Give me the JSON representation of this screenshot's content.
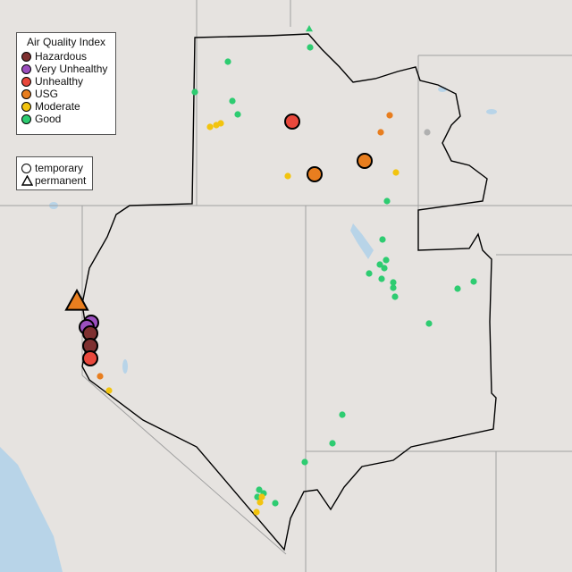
{
  "legend_aqi": {
    "title": "Air Quality Index",
    "items": [
      {
        "label": "Hazardous",
        "color": "#7e3030"
      },
      {
        "label": "Very Unhealthy",
        "color": "#9b4fbe"
      },
      {
        "label": "Unhealthy",
        "color": "#e8483c"
      },
      {
        "label": "USG",
        "color": "#e87e1f"
      },
      {
        "label": "Moderate",
        "color": "#f2c40f"
      },
      {
        "label": "Good",
        "color": "#2ecc71"
      }
    ]
  },
  "legend_type": {
    "items": [
      {
        "label": "temporary",
        "shape": "circle"
      },
      {
        "label": "permanent",
        "shape": "triangle"
      }
    ]
  },
  "colors": {
    "no_data": "#b0b0b0",
    "land": "#e6e3e0",
    "water": "#b8d4e8",
    "boundary": "#000000",
    "state_line": "#9a9a9a"
  },
  "monitors": [
    {
      "aqi": "Good",
      "type": "permanent",
      "size": "small"
    },
    {
      "aqi": "Good",
      "type": "temporary",
      "size": "small"
    },
    {
      "aqi": "Good",
      "type": "temporary",
      "size": "small"
    },
    {
      "aqi": "Good",
      "type": "temporary",
      "size": "small"
    },
    {
      "aqi": "Good",
      "type": "temporary",
      "size": "small"
    },
    {
      "aqi": "Good",
      "type": "temporary",
      "size": "small"
    },
    {
      "aqi": "Good",
      "type": "temporary",
      "size": "small"
    },
    {
      "aqi": "Good",
      "type": "temporary",
      "size": "small"
    },
    {
      "aqi": "Good",
      "type": "temporary",
      "size": "small"
    },
    {
      "aqi": "Good",
      "type": "temporary",
      "size": "small"
    },
    {
      "aqi": "Good",
      "type": "temporary",
      "size": "small"
    },
    {
      "aqi": "Good",
      "type": "temporary",
      "size": "small"
    },
    {
      "aqi": "Good",
      "type": "temporary",
      "size": "small"
    },
    {
      "aqi": "Good",
      "type": "temporary",
      "size": "small"
    },
    {
      "aqi": "Good",
      "type": "temporary",
      "size": "small"
    },
    {
      "aqi": "Good",
      "type": "temporary",
      "size": "small"
    },
    {
      "aqi": "Good",
      "type": "temporary",
      "size": "small"
    },
    {
      "aqi": "Good",
      "type": "temporary",
      "size": "small"
    },
    {
      "aqi": "Good",
      "type": "temporary",
      "size": "small"
    },
    {
      "aqi": "Good",
      "type": "temporary",
      "size": "small"
    },
    {
      "aqi": "Good",
      "type": "temporary",
      "size": "small"
    },
    {
      "aqi": "Good",
      "type": "temporary",
      "size": "small"
    },
    {
      "aqi": "Good",
      "type": "temporary",
      "size": "small"
    },
    {
      "aqi": "Good",
      "type": "temporary",
      "size": "small"
    },
    {
      "aqi": "Good",
      "type": "temporary",
      "size": "small"
    },
    {
      "aqi": "Good",
      "type": "temporary",
      "size": "small"
    },
    {
      "aqi": "Moderate",
      "type": "temporary",
      "size": "small"
    },
    {
      "aqi": "Moderate",
      "type": "temporary",
      "size": "small"
    },
    {
      "aqi": "Moderate",
      "type": "temporary",
      "size": "small"
    },
    {
      "aqi": "Moderate",
      "type": "temporary",
      "size": "small"
    },
    {
      "aqi": "Moderate",
      "type": "temporary",
      "size": "small"
    },
    {
      "aqi": "Moderate",
      "type": "temporary",
      "size": "small"
    },
    {
      "aqi": "Moderate",
      "type": "temporary",
      "size": "small"
    },
    {
      "aqi": "Moderate",
      "type": "temporary",
      "size": "small"
    },
    {
      "aqi": "Moderate",
      "type": "temporary",
      "size": "small"
    },
    {
      "aqi": "USG",
      "type": "temporary",
      "size": "small"
    },
    {
      "aqi": "USG",
      "type": "temporary",
      "size": "small"
    },
    {
      "aqi": "USG",
      "type": "temporary",
      "size": "small"
    },
    {
      "aqi": "No data",
      "type": "temporary",
      "size": "small"
    },
    {
      "aqi": "Unhealthy",
      "type": "temporary",
      "size": "large"
    },
    {
      "aqi": "USG",
      "type": "temporary",
      "size": "large"
    },
    {
      "aqi": "USG",
      "type": "temporary",
      "size": "large"
    },
    {
      "aqi": "USG",
      "type": "permanent",
      "size": "large"
    },
    {
      "aqi": "Very Unhealthy",
      "type": "temporary",
      "size": "large"
    },
    {
      "aqi": "Very Unhealthy",
      "type": "temporary",
      "size": "large"
    },
    {
      "aqi": "Hazardous",
      "type": "temporary",
      "size": "large"
    },
    {
      "aqi": "Hazardous",
      "type": "temporary",
      "size": "large"
    },
    {
      "aqi": "Unhealthy",
      "type": "temporary",
      "size": "large"
    }
  ]
}
